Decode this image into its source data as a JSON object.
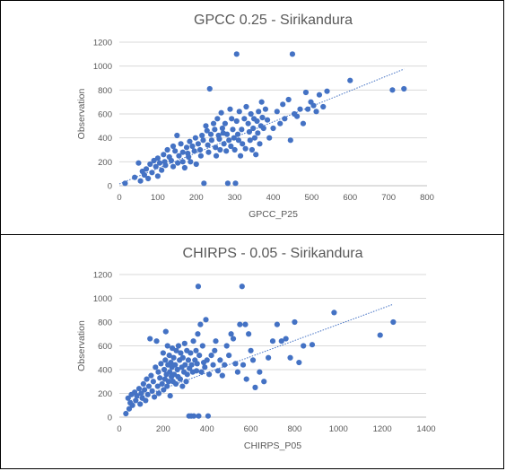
{
  "chart_data": [
    {
      "type": "scatter",
      "title": "GPCC 0.25 - Sirikandura",
      "xlabel": "GPCC_P25",
      "ylabel": "Observation",
      "xlim": [
        0,
        800
      ],
      "ylim": [
        0,
        1200
      ],
      "xticks": [
        0,
        100,
        200,
        300,
        400,
        500,
        600,
        700,
        800
      ],
      "yticks": [
        0,
        200,
        400,
        600,
        800,
        1000,
        1200
      ],
      "grid": "horizontal",
      "trendline": {
        "x": [
          0,
          740
        ],
        "y": [
          15,
          975
        ]
      },
      "color": "#4472c4",
      "points": [
        [
          15,
          20
        ],
        [
          40,
          70
        ],
        [
          50,
          190
        ],
        [
          55,
          40
        ],
        [
          60,
          120
        ],
        [
          65,
          90
        ],
        [
          70,
          140
        ],
        [
          75,
          60
        ],
        [
          80,
          180
        ],
        [
          85,
          110
        ],
        [
          90,
          210
        ],
        [
          95,
          160
        ],
        [
          100,
          80
        ],
        [
          100,
          230
        ],
        [
          105,
          190
        ],
        [
          110,
          130
        ],
        [
          115,
          260
        ],
        [
          118,
          200
        ],
        [
          120,
          170
        ],
        [
          125,
          300
        ],
        [
          130,
          240
        ],
        [
          135,
          210
        ],
        [
          140,
          160
        ],
        [
          140,
          330
        ],
        [
          145,
          290
        ],
        [
          150,
          420
        ],
        [
          152,
          190
        ],
        [
          155,
          250
        ],
        [
          160,
          350
        ],
        [
          165,
          280
        ],
        [
          165,
          200
        ],
        [
          170,
          150
        ],
        [
          175,
          320
        ],
        [
          178,
          270
        ],
        [
          180,
          240
        ],
        [
          183,
          370
        ],
        [
          185,
          200
        ],
        [
          190,
          330
        ],
        [
          195,
          290
        ],
        [
          198,
          400
        ],
        [
          200,
          180
        ],
        [
          205,
          350
        ],
        [
          210,
          300
        ],
        [
          212,
          250
        ],
        [
          215,
          420
        ],
        [
          218,
          380
        ],
        [
          220,
          20
        ],
        [
          225,
          500
        ],
        [
          228,
          460
        ],
        [
          230,
          340
        ],
        [
          232,
          280
        ],
        [
          235,
          810
        ],
        [
          238,
          430
        ],
        [
          240,
          380
        ],
        [
          245,
          520
        ],
        [
          248,
          470
        ],
        [
          250,
          320
        ],
        [
          252,
          250
        ],
        [
          255,
          560
        ],
        [
          258,
          420
        ],
        [
          260,
          390
        ],
        [
          262,
          300
        ],
        [
          265,
          610
        ],
        [
          268,
          480
        ],
        [
          270,
          440
        ],
        [
          272,
          350
        ],
        [
          275,
          520
        ],
        [
          278,
          290
        ],
        [
          280,
          430
        ],
        [
          282,
          20
        ],
        [
          285,
          380
        ],
        [
          288,
          640
        ],
        [
          290,
          330
        ],
        [
          292,
          560
        ],
        [
          295,
          470
        ],
        [
          298,
          400
        ],
        [
          300,
          300
        ],
        [
          302,
          20
        ],
        [
          305,
          1100
        ],
        [
          305,
          540
        ],
        [
          308,
          430
        ],
        [
          310,
          380
        ],
        [
          312,
          620
        ],
        [
          315,
          250
        ],
        [
          318,
          470
        ],
        [
          320,
          350
        ],
        [
          325,
          560
        ],
        [
          328,
          310
        ],
        [
          330,
          660
        ],
        [
          335,
          520
        ],
        [
          338,
          450
        ],
        [
          340,
          380
        ],
        [
          342,
          600
        ],
        [
          345,
          300
        ],
        [
          348,
          480
        ],
        [
          350,
          560
        ],
        [
          352,
          400
        ],
        [
          355,
          260
        ],
        [
          358,
          540
        ],
        [
          360,
          440
        ],
        [
          362,
          620
        ],
        [
          365,
          350
        ],
        [
          368,
          500
        ],
        [
          370,
          700
        ],
        [
          372,
          570
        ],
        [
          375,
          480
        ],
        [
          380,
          640
        ],
        [
          385,
          550
        ],
        [
          390,
          400
        ],
        [
          400,
          480
        ],
        [
          410,
          620
        ],
        [
          418,
          520
        ],
        [
          425,
          680
        ],
        [
          430,
          560
        ],
        [
          440,
          720
        ],
        [
          445,
          380
        ],
        [
          450,
          1100
        ],
        [
          455,
          600
        ],
        [
          462,
          580
        ],
        [
          470,
          640
        ],
        [
          478,
          520
        ],
        [
          485,
          780
        ],
        [
          490,
          640
        ],
        [
          498,
          700
        ],
        [
          505,
          670
        ],
        [
          512,
          620
        ],
        [
          520,
          760
        ],
        [
          530,
          660
        ],
        [
          540,
          790
        ],
        [
          600,
          880
        ],
        [
          710,
          800
        ],
        [
          740,
          810
        ]
      ]
    },
    {
      "type": "scatter",
      "title": "CHIRPS - 0.05 - Sirikandura",
      "xlabel": "CHIRPS_P05",
      "ylabel": "Observation",
      "xlim": [
        0,
        1400
      ],
      "ylim": [
        0,
        1200
      ],
      "xticks": [
        0,
        200,
        400,
        600,
        800,
        1000,
        1200,
        1400
      ],
      "yticks": [
        0,
        200,
        400,
        600,
        800,
        1000,
        1200
      ],
      "grid": "horizontal",
      "trendline": {
        "x": [
          40,
          1250
        ],
        "y": [
          130,
          950
        ]
      },
      "color": "#4472c4",
      "points": [
        [
          30,
          30
        ],
        [
          40,
          160
        ],
        [
          45,
          70
        ],
        [
          50,
          120
        ],
        [
          55,
          190
        ],
        [
          60,
          100
        ],
        [
          70,
          210
        ],
        [
          75,
          140
        ],
        [
          80,
          180
        ],
        [
          90,
          240
        ],
        [
          95,
          110
        ],
        [
          100,
          200
        ],
        [
          105,
          160
        ],
        [
          110,
          280
        ],
        [
          115,
          230
        ],
        [
          120,
          140
        ],
        [
          125,
          320
        ],
        [
          130,
          190
        ],
        [
          135,
          260
        ],
        [
          140,
          660
        ],
        [
          145,
          350
        ],
        [
          150,
          220
        ],
        [
          155,
          300
        ],
        [
          160,
          170
        ],
        [
          165,
          420
        ],
        [
          170,
          640
        ],
        [
          175,
          260
        ],
        [
          178,
          380
        ],
        [
          180,
          200
        ],
        [
          185,
          330
        ],
        [
          190,
          450
        ],
        [
          195,
          280
        ],
        [
          200,
          540
        ],
        [
          202,
          230
        ],
        [
          205,
          400
        ],
        [
          208,
          320
        ],
        [
          210,
          480
        ],
        [
          212,
          720
        ],
        [
          215,
          360
        ],
        [
          218,
          260
        ],
        [
          220,
          600
        ],
        [
          222,
          440
        ],
        [
          225,
          300
        ],
        [
          228,
          520
        ],
        [
          230,
          380
        ],
        [
          232,
          180
        ],
        [
          235,
          460
        ],
        [
          238,
          340
        ],
        [
          240,
          420
        ],
        [
          242,
          580
        ],
        [
          245,
          300
        ],
        [
          248,
          500
        ],
        [
          250,
          360
        ],
        [
          255,
          440
        ],
        [
          258,
          280
        ],
        [
          260,
          560
        ],
        [
          265,
          400
        ],
        [
          268,
          340
        ],
        [
          270,
          600
        ],
        [
          275,
          480
        ],
        [
          278,
          320
        ],
        [
          280,
          540
        ],
        [
          285,
          420
        ],
        [
          288,
          260
        ],
        [
          290,
          500
        ],
        [
          295,
          380
        ],
        [
          298,
          620
        ],
        [
          300,
          440
        ],
        [
          305,
          300
        ],
        [
          308,
          560
        ],
        [
          310,
          360
        ],
        [
          315,
          480
        ],
        [
          318,
          10
        ],
        [
          320,
          410
        ],
        [
          325,
          540
        ],
        [
          328,
          10
        ],
        [
          330,
          440
        ],
        [
          335,
          380
        ],
        [
          338,
          640
        ],
        [
          340,
          10
        ],
        [
          345,
          480
        ],
        [
          350,
          560
        ],
        [
          352,
          390
        ],
        [
          355,
          450
        ],
        [
          358,
          700
        ],
        [
          360,
          1100
        ],
        [
          362,
          10
        ],
        [
          365,
          520
        ],
        [
          370,
          780
        ],
        [
          375,
          380
        ],
        [
          380,
          600
        ],
        [
          385,
          460
        ],
        [
          390,
          420
        ],
        [
          395,
          820
        ],
        [
          400,
          480
        ],
        [
          405,
          10
        ],
        [
          410,
          360
        ],
        [
          420,
          520
        ],
        [
          428,
          440
        ],
        [
          435,
          560
        ],
        [
          440,
          640
        ],
        [
          450,
          390
        ],
        [
          460,
          480
        ],
        [
          470,
          350
        ],
        [
          480,
          440
        ],
        [
          490,
          600
        ],
        [
          500,
          520
        ],
        [
          510,
          700
        ],
        [
          520,
          660
        ],
        [
          530,
          450
        ],
        [
          540,
          380
        ],
        [
          550,
          780
        ],
        [
          560,
          1100
        ],
        [
          565,
          440
        ],
        [
          575,
          780
        ],
        [
          580,
          320
        ],
        [
          590,
          700
        ],
        [
          600,
          560
        ],
        [
          610,
          480
        ],
        [
          620,
          250
        ],
        [
          640,
          380
        ],
        [
          660,
          300
        ],
        [
          680,
          500
        ],
        [
          700,
          640
        ],
        [
          720,
          780
        ],
        [
          740,
          640
        ],
        [
          760,
          660
        ],
        [
          780,
          500
        ],
        [
          800,
          800
        ],
        [
          820,
          460
        ],
        [
          840,
          600
        ],
        [
          880,
          610
        ],
        [
          980,
          880
        ],
        [
          1190,
          690
        ],
        [
          1250,
          800
        ]
      ]
    }
  ]
}
